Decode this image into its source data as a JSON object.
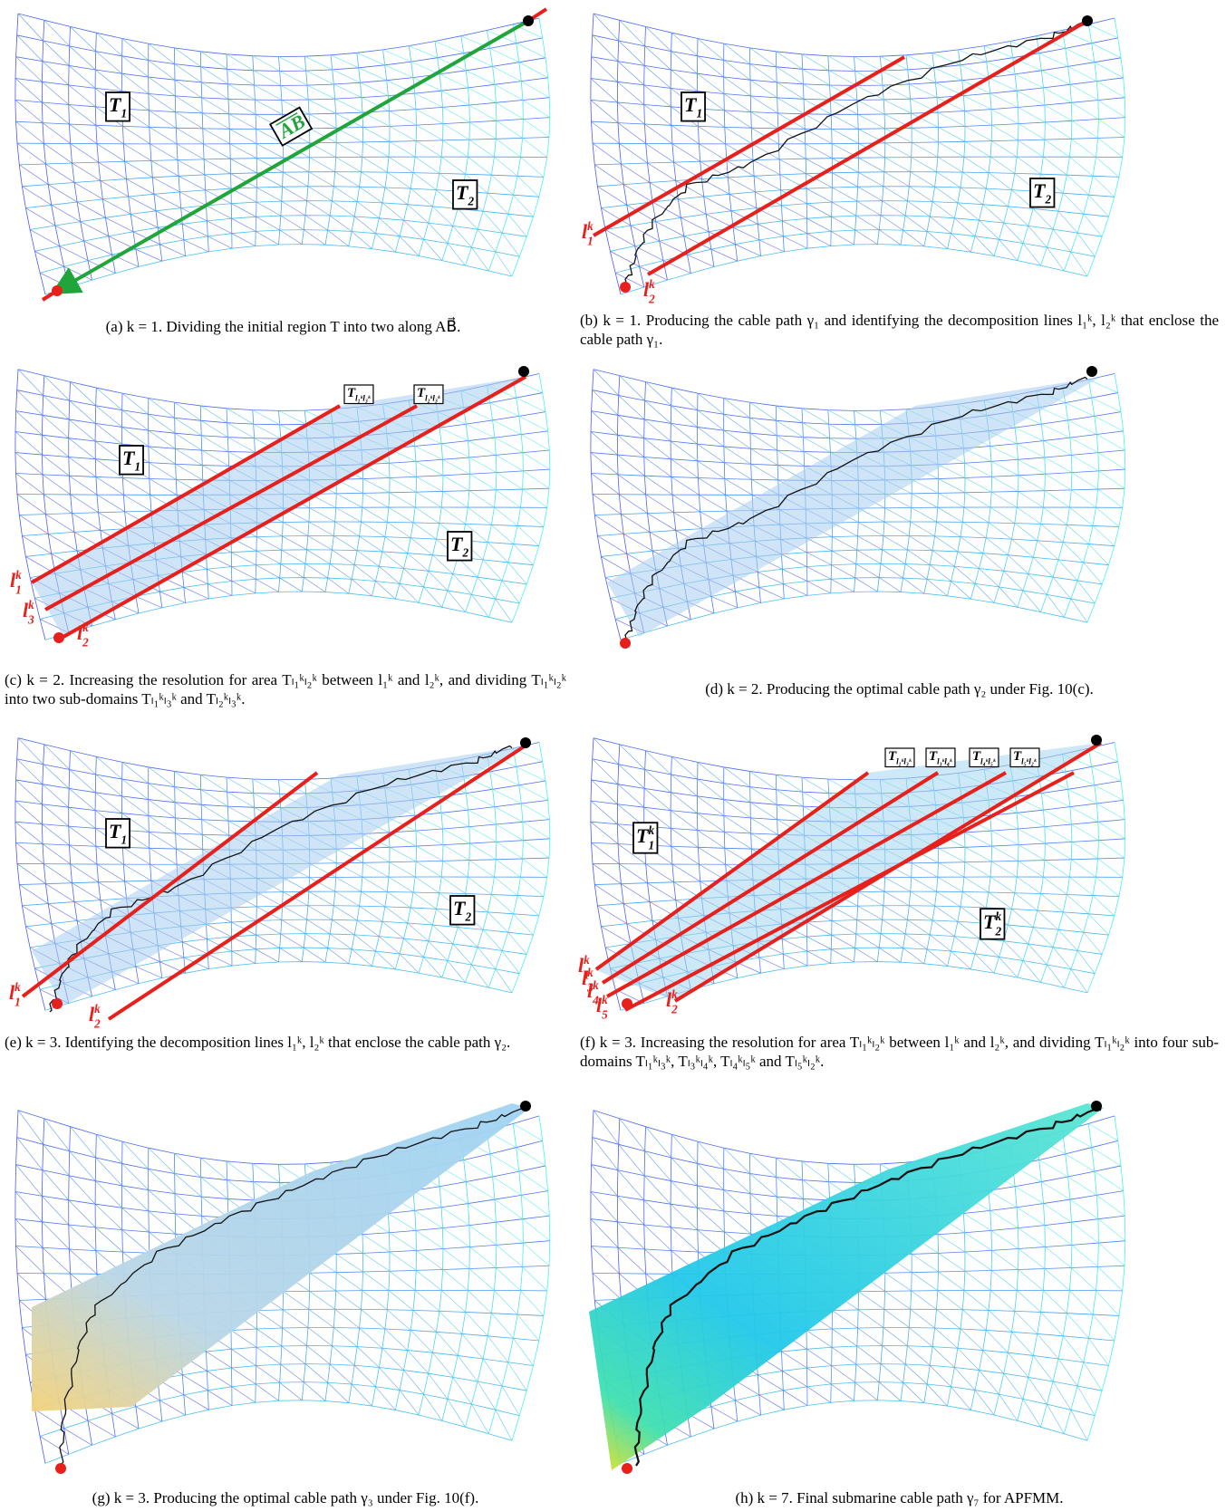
{
  "panels": [
    {
      "caption": "(a) k = 1. Dividing the initial region T into two along AB⃗.",
      "labels": [
        {
          "text": "T",
          "sub": "1"
        },
        {
          "text": "T",
          "sub": "2"
        },
        {
          "text": "AB"
        }
      ]
    },
    {
      "caption": "(b) k = 1. Producing the cable path γ₁ and identifying the decomposition lines l₁ᵏ, l₂ᵏ that enclose the cable path γ₁.",
      "labels": [
        {
          "text": "T",
          "sub": "1"
        },
        {
          "text": "T",
          "sub": "2"
        },
        {
          "text": "l",
          "sup": "k",
          "sub": "1"
        },
        {
          "text": "l",
          "sup": "k",
          "sub": "2"
        }
      ]
    },
    {
      "caption": "(c) k = 2. Increasing the resolution for area Tₗ₁ᵏₗ₂ᵏ between l₁ᵏ and l₂ᵏ, and dividing Tₗ₁ᵏₗ₂ᵏ into two sub-domains Tₗ₁ᵏₗ₃ᵏ and Tₗ₂ᵏₗ₃ᵏ.",
      "labels": [
        {
          "text": "T",
          "sub": "1"
        },
        {
          "text": "T",
          "sub": "2"
        },
        {
          "text": "T",
          "sub": "l₁ᵏl₃ᵏ"
        },
        {
          "text": "T",
          "sub": "l₂ᵏl₃ᵏ"
        },
        {
          "text": "l",
          "sup": "k",
          "sub": "1"
        },
        {
          "text": "l",
          "sup": "k",
          "sub": "3"
        },
        {
          "text": "l",
          "sup": "k",
          "sub": "2"
        }
      ]
    },
    {
      "caption": "(d) k = 2. Producing the optimal cable path γ₂ under Fig. 10(c).",
      "labels": []
    },
    {
      "caption": "(e) k = 3. Identifying the decomposition lines l₁ᵏ, l₂ᵏ that enclose the cable path γ₂.",
      "labels": [
        {
          "text": "T",
          "sub": "1"
        },
        {
          "text": "T",
          "sub": "2"
        },
        {
          "text": "l",
          "sup": "k",
          "sub": "1"
        },
        {
          "text": "l",
          "sup": "k",
          "sub": "2"
        }
      ]
    },
    {
      "caption": "(f) k = 3. Increasing the resolution for area Tₗ₁ᵏₗ₂ᵏ between l₁ᵏ and l₂ᵏ, and dividing Tₗ₁ᵏₗ₂ᵏ into four sub-domains Tₗ₁ᵏₗ₃ᵏ, Tₗ₃ᵏₗ₄ᵏ, Tₗ₄ᵏₗ₅ᵏ and Tₗ₅ᵏₗ₂ᵏ.",
      "labels": [
        {
          "text": "T",
          "sup": "k",
          "sub": "1"
        },
        {
          "text": "T",
          "sup": "k",
          "sub": "2"
        },
        {
          "text": "T",
          "sub": "l₁ᵏl₃ᵏ"
        },
        {
          "text": "T",
          "sub": "l₃ᵏl₄ᵏ"
        },
        {
          "text": "T",
          "sub": "l₄ᵏl₅ᵏ"
        },
        {
          "text": "T",
          "sub": "l₅ᵏl₂ᵏ"
        },
        {
          "text": "l",
          "sup": "k",
          "sub": "1"
        },
        {
          "text": "l",
          "sup": "k",
          "sub": "3"
        },
        {
          "text": "l",
          "sup": "k",
          "sub": "4"
        },
        {
          "text": "l",
          "sup": "k",
          "sub": "5"
        },
        {
          "text": "l",
          "sup": "k",
          "sub": "2"
        }
      ]
    },
    {
      "caption": "(g) k = 3. Producing the optimal cable path γ₃ under Fig. 10(f).",
      "labels": []
    },
    {
      "caption": "(h) k = 7. Final submarine cable path γ₇ for APFMM.",
      "labels": []
    }
  ]
}
